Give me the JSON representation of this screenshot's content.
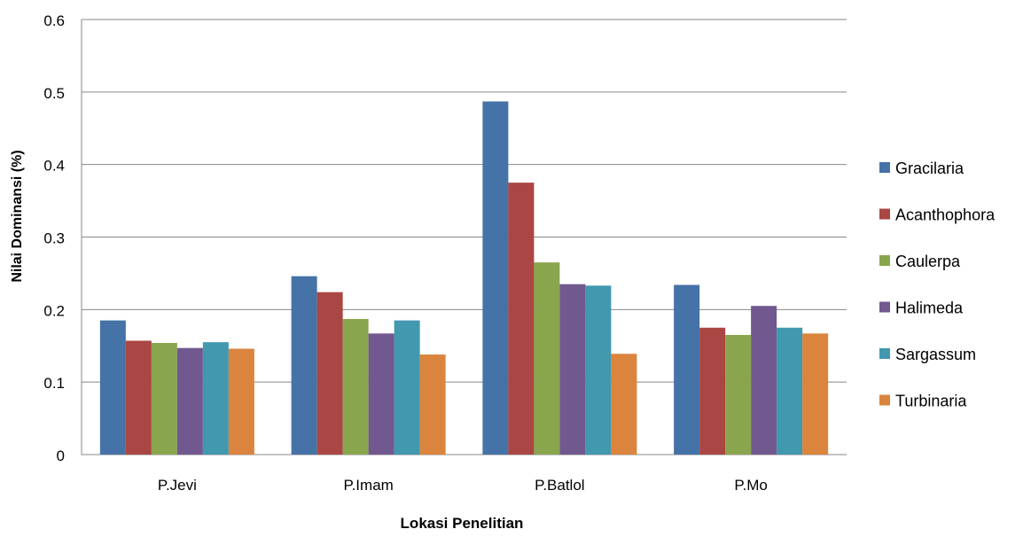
{
  "chart_data": {
    "type": "bar",
    "title": "",
    "xlabel": "Lokasi Penelitian",
    "ylabel": "Nilai Dominansi (%)",
    "ylim": [
      0,
      0.6
    ],
    "yticks": [
      "0",
      "0.1",
      "0.2",
      "0.3",
      "0.4",
      "0.5",
      "0.6"
    ],
    "grid": true,
    "legend_position": "right",
    "categories": [
      "P.Jevi",
      "P.Imam",
      "P.Batlol",
      "P.Mo"
    ],
    "series": [
      {
        "name": "Gracilaria",
        "color": "#4572A7",
        "values": [
          0.185,
          0.246,
          0.487,
          0.234
        ]
      },
      {
        "name": "Acanthophora",
        "color": "#AA4643",
        "values": [
          0.157,
          0.224,
          0.375,
          0.175
        ]
      },
      {
        "name": "Caulerpa",
        "color": "#89A54E",
        "values": [
          0.154,
          0.187,
          0.265,
          0.165
        ]
      },
      {
        "name": "Halimeda",
        "color": "#71588F",
        "values": [
          0.147,
          0.167,
          0.235,
          0.205
        ]
      },
      {
        "name": "Sargassum",
        "color": "#4198AF",
        "values": [
          0.155,
          0.185,
          0.233,
          0.175
        ]
      },
      {
        "name": "Turbinaria",
        "color": "#DB843D",
        "values": [
          0.146,
          0.138,
          0.139,
          0.167
        ]
      }
    ]
  }
}
